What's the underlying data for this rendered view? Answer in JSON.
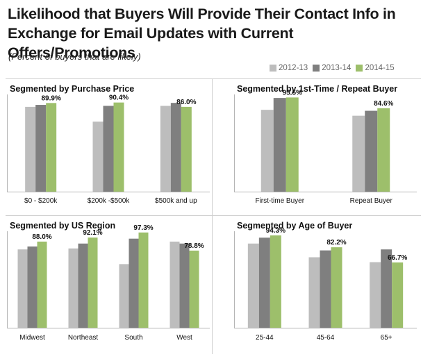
{
  "header": {
    "title_line1": "Likelihood that Buyers Will Provide Their Contact Info in",
    "title_line2": "Exchange for Email Updates with Current Offers/Promotions",
    "subtitle": "(Percent of buyers that are likely)"
  },
  "legend": [
    {
      "label": "2012-13",
      "color": "#bdbdbd"
    },
    {
      "label": "2013-14",
      "color": "#7f7f7f"
    },
    {
      "label": "2014-15",
      "color": "#9dbf6b"
    }
  ],
  "chart_data": [
    {
      "type": "bar",
      "title": "Segmented by Purchase Price",
      "categories": [
        "$0 - $200k",
        "$200k -$500k",
        "$500k and up"
      ],
      "series": [
        {
          "name": "2012-13",
          "values": [
            86.0,
            71.0,
            87.0
          ]
        },
        {
          "name": "2013-14",
          "values": [
            88.0,
            87.0,
            90.0
          ]
        },
        {
          "name": "2014-15",
          "values": [
            89.9,
            90.4,
            86.0
          ]
        }
      ],
      "data_labels": [
        "89.9%",
        "90.4%",
        "86.0%"
      ],
      "ylim": [
        0,
        100
      ]
    },
    {
      "type": "bar",
      "title": "Segmented by 1st-Time / Repeat Buyer",
      "categories": [
        "First-time Buyer",
        "Repeat Buyer"
      ],
      "series": [
        {
          "name": "2012-13",
          "values": [
            83.0,
            77.0
          ]
        },
        {
          "name": "2013-14",
          "values": [
            95.0,
            82.0
          ]
        },
        {
          "name": "2014-15",
          "values": [
            95.5,
            84.6
          ]
        }
      ],
      "data_labels": [
        "95.5%",
        "84.6%"
      ],
      "ylim": [
        0,
        100
      ]
    },
    {
      "type": "bar",
      "title": "Segmented by US Region",
      "categories": [
        "Midwest",
        "Northeast",
        "South",
        "West"
      ],
      "series": [
        {
          "name": "2012-13",
          "values": [
            80.0,
            81.0,
            65.0,
            88.0
          ]
        },
        {
          "name": "2013-14",
          "values": [
            83.0,
            86.0,
            91.0,
            86.0
          ]
        },
        {
          "name": "2014-15",
          "values": [
            88.0,
            92.1,
            97.3,
            78.8
          ]
        }
      ],
      "data_labels": [
        "88.0%",
        "92.1%",
        "97.3%",
        "78.8%"
      ],
      "ylim": [
        0,
        100
      ]
    },
    {
      "type": "bar",
      "title": "Segmented by Age of Buyer",
      "categories": [
        "25-44",
        "45-64",
        "65+"
      ],
      "series": [
        {
          "name": "2012-13",
          "values": [
            86.0,
            72.0,
            67.0
          ]
        },
        {
          "name": "2013-14",
          "values": [
            92.0,
            79.0,
            80.0
          ]
        },
        {
          "name": "2014-15",
          "values": [
            94.3,
            82.2,
            66.7
          ]
        }
      ],
      "data_labels": [
        "94.3%",
        "82.2%",
        "66.7%"
      ],
      "ylim": [
        0,
        100
      ]
    }
  ]
}
